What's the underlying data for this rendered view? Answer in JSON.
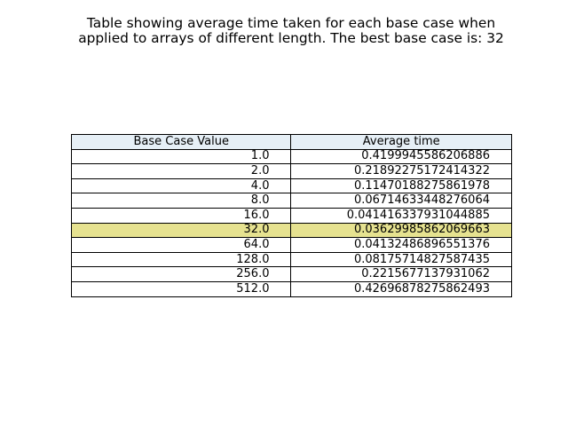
{
  "chart_data": {
    "type": "table",
    "title": "Table showing average time taken for each base case when\napplied to arrays of different length. The best base case is: 32",
    "columns": [
      "Base Case Value",
      "Average time"
    ],
    "rows": [
      [
        "1.0",
        "0.4199945586206886"
      ],
      [
        "2.0",
        "0.21892275172414322"
      ],
      [
        "4.0",
        "0.11470188275861978"
      ],
      [
        "8.0",
        "0.06714633448276064"
      ],
      [
        "16.0",
        "0.041416337931044885"
      ],
      [
        "32.0",
        "0.03629985862069663"
      ],
      [
        "64.0",
        "0.04132486896551376"
      ],
      [
        "128.0",
        "0.08175714827587435"
      ],
      [
        "256.0",
        "0.2215677137931062"
      ],
      [
        "512.0",
        "0.42696878275862493"
      ]
    ],
    "highlight_row": 5,
    "colors": {
      "header_bg": "#e6eff6",
      "highlight_bg": "#e6e290",
      "row_bg": "#ffffff",
      "border": "#000000"
    }
  }
}
